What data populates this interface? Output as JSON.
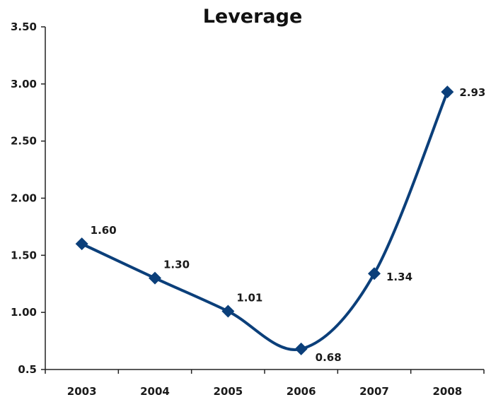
{
  "chart_data": {
    "type": "line",
    "title": "Leverage",
    "xlabel": "",
    "ylabel": "",
    "categories": [
      "2003",
      "2004",
      "2005",
      "2006",
      "2007",
      "2008"
    ],
    "series": [
      {
        "values": [
          1.6,
          1.3,
          1.01,
          0.68,
          1.34,
          2.93
        ],
        "data_labels": [
          "1.60",
          "1.30",
          "1.01",
          "0.68",
          "1.34",
          "2.93"
        ],
        "color": "#0b3f7a",
        "marker": "diamond",
        "smooth": true
      }
    ],
    "ylim": [
      0.5,
      3.5
    ],
    "yticks": [
      0.5,
      1.0,
      1.5,
      2.0,
      2.5,
      3.0,
      3.5
    ],
    "ytick_labels": [
      "0.5",
      "1.00",
      "1.50",
      "2.00",
      "2.50",
      "3.00",
      "3.50"
    ],
    "grid": false,
    "legend": "none"
  }
}
